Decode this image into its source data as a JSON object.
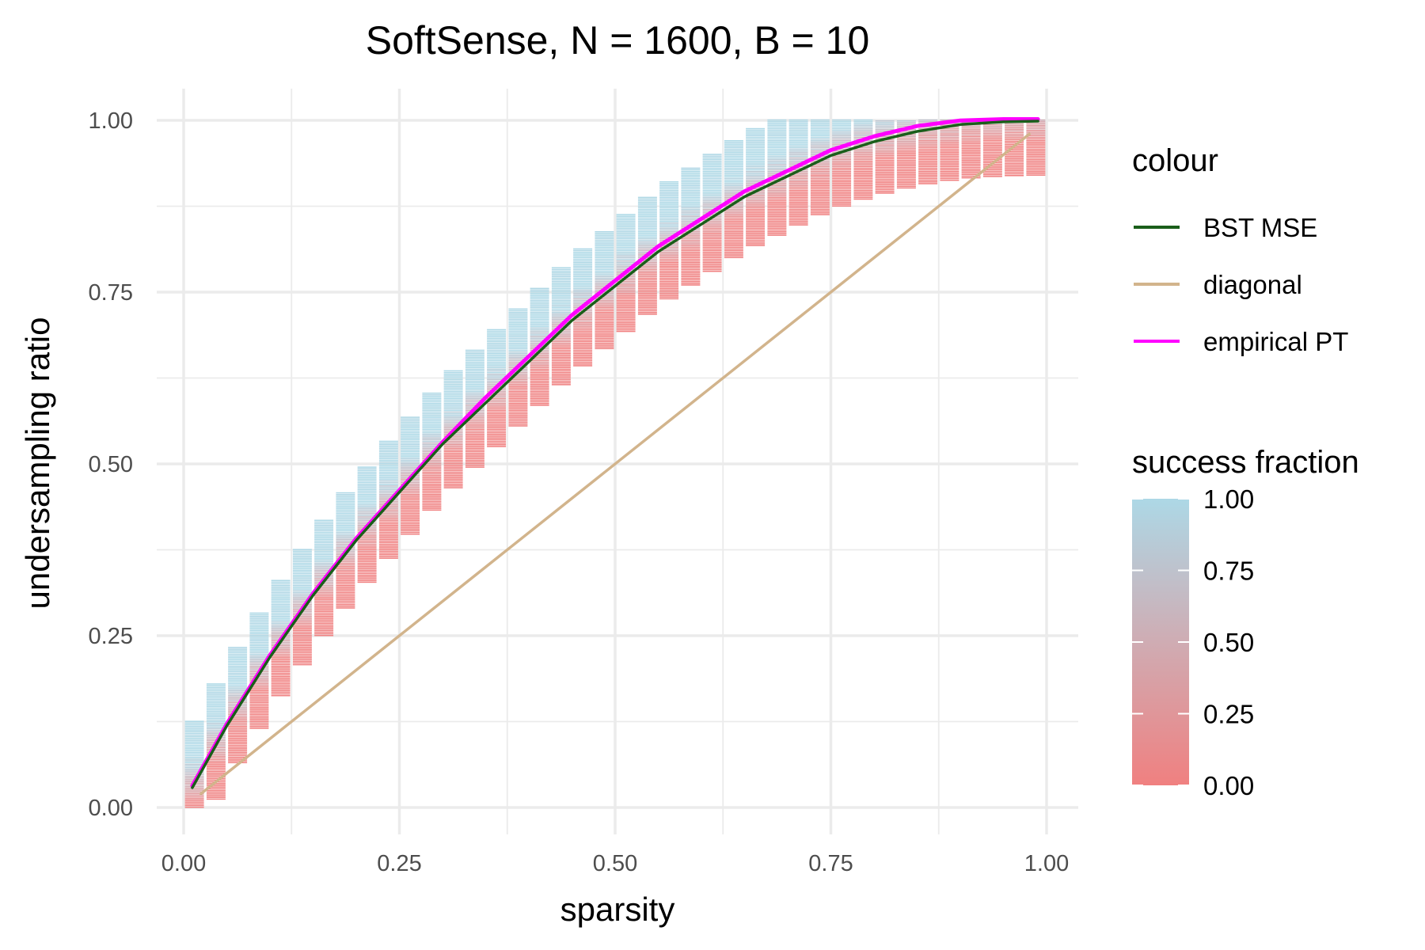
{
  "chart_data": {
    "type": "heatmap",
    "title": "SoftSense, N = 1600, B = 10",
    "xlabel": "sparsity",
    "ylabel": "undersampling ratio",
    "xlim": [
      0,
      1
    ],
    "ylim": [
      0,
      1
    ],
    "x_ticks": [
      0.0,
      0.25,
      0.5,
      0.75,
      1.0
    ],
    "y_ticks": [
      0.0,
      0.25,
      0.5,
      0.75,
      1.0
    ],
    "x_tick_labels": [
      "0.00",
      "0.25",
      "0.50",
      "0.75",
      "1.00"
    ],
    "y_tick_labels": [
      "0.00",
      "0.25",
      "0.50",
      "0.75",
      "1.00"
    ],
    "grid": true,
    "legend_position": "right",
    "colour_legend": {
      "title": "colour",
      "items": [
        {
          "label": "BST MSE",
          "color": "#1a5e1a"
        },
        {
          "label": "diagonal",
          "color": "#d2b48c"
        },
        {
          "label": "empirical PT",
          "color": "#ff00ff"
        }
      ]
    },
    "fill_legend": {
      "title": "success fraction",
      "low_color": "#f08080",
      "high_color": "#add8e6",
      "breaks": [
        0.0,
        0.25,
        0.5,
        0.75,
        1.0
      ],
      "break_labels": [
        "0.00",
        "0.25",
        "0.50",
        "0.75",
        "1.00"
      ]
    },
    "heatmap": {
      "sparsity_start": 0.0125,
      "sparsity_step": 0.025,
      "sparsity_count": 40,
      "tile_width": 0.022,
      "undersampling_step": 0.0025,
      "band_below": 0.08,
      "band_above": 0.09
    },
    "series": [
      {
        "name": "BST MSE",
        "color": "#1a5e1a",
        "x": [
          0.01,
          0.05,
          0.1,
          0.15,
          0.2,
          0.25,
          0.3,
          0.35,
          0.4,
          0.45,
          0.5,
          0.55,
          0.6,
          0.65,
          0.7,
          0.75,
          0.8,
          0.85,
          0.9,
          0.95,
          0.99
        ],
        "y": [
          0.03,
          0.12,
          0.22,
          0.31,
          0.39,
          0.46,
          0.53,
          0.59,
          0.65,
          0.71,
          0.76,
          0.81,
          0.85,
          0.89,
          0.92,
          0.95,
          0.97,
          0.985,
          0.995,
          0.999,
          1.0
        ]
      },
      {
        "name": "empirical PT",
        "color": "#ff00ff",
        "x": [
          0.01,
          0.05,
          0.1,
          0.15,
          0.2,
          0.25,
          0.3,
          0.35,
          0.4,
          0.45,
          0.5,
          0.55,
          0.6,
          0.65,
          0.7,
          0.75,
          0.8,
          0.85,
          0.9,
          0.95,
          0.99
        ],
        "y": [
          0.03,
          0.12,
          0.22,
          0.31,
          0.39,
          0.46,
          0.53,
          0.595,
          0.655,
          0.715,
          0.765,
          0.815,
          0.855,
          0.895,
          0.925,
          0.955,
          0.975,
          0.99,
          0.998,
          1.0,
          1.0
        ]
      },
      {
        "name": "diagonal",
        "color": "#d2b48c",
        "x": [
          0.02,
          0.98
        ],
        "y": [
          0.02,
          0.98
        ]
      }
    ]
  }
}
